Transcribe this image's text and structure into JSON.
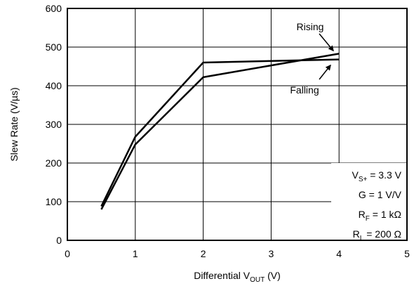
{
  "chart_data": {
    "type": "line",
    "xlabel": "Differential V",
    "xlabel_sub": "OUT",
    "xlabel_unit": " (V)",
    "ylabel": "Slew Rate (V/µs)",
    "xlim": [
      0,
      5
    ],
    "ylim": [
      0,
      600
    ],
    "x_ticks": [
      0,
      1,
      2,
      3,
      4,
      5
    ],
    "y_ticks": [
      0,
      100,
      200,
      300,
      400,
      500,
      600
    ],
    "grid": true,
    "series": [
      {
        "name": "Rising",
        "x": [
          0.5,
          1,
          2,
          4
        ],
        "y": [
          80,
          248,
          422,
          483
        ]
      },
      {
        "name": "Falling",
        "x": [
          0.5,
          1,
          2,
          4
        ],
        "y": [
          88,
          268,
          460,
          468
        ]
      }
    ],
    "conditions": [
      {
        "main": "V",
        "sub": "S+",
        "rest": " = 3.3 V"
      },
      {
        "main": "G = 1 V/V",
        "sub": "",
        "rest": ""
      },
      {
        "main": "R",
        "sub": "F",
        "rest": " = 1 kΩ"
      },
      {
        "main": "R",
        "sub": "L",
        "rest": " = 200 Ω"
      }
    ]
  }
}
